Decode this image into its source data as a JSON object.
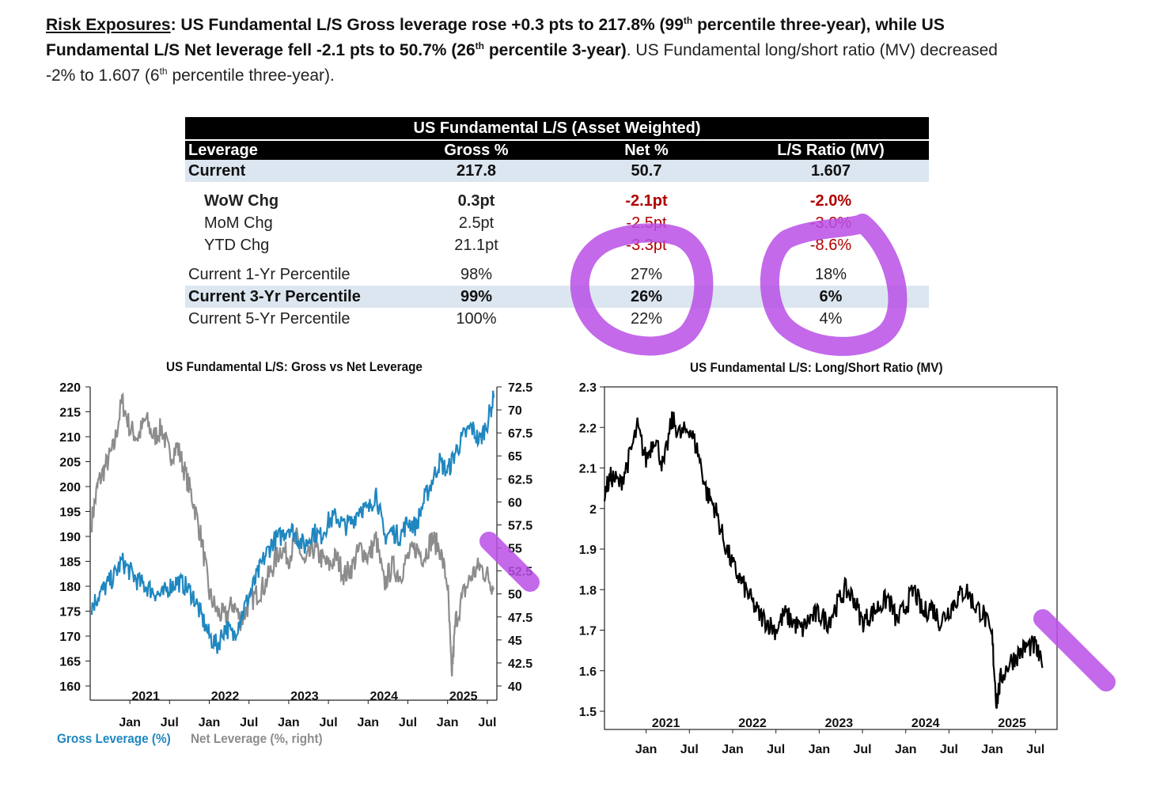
{
  "intro": {
    "label": "Risk Exposures",
    "colon": ": ",
    "bold1": "US Fundamental L/S Gross leverage rose +0.3 pts to 217.8% (99",
    "sup1": "th",
    "bold2": " percentile three-year), while US Fundamental L/S Net leverage fell -2.1 pts to 50.7% (26",
    "sup2": "th",
    "bold3": " percentile 3-year)",
    "plain1": ". US Fundamental long/short ratio (MV) decreased -2% to 1.607 (6",
    "sup3": "th",
    "plain2": " percentile three-year)."
  },
  "table": {
    "title": "US Fundamental L/S (Asset Weighted)",
    "headers": [
      "Leverage",
      "Gross %",
      "Net %",
      "L/S Ratio (MV)"
    ],
    "current": [
      "Current",
      "217.8",
      "50.7",
      "1.607"
    ],
    "wow": [
      "WoW Chg",
      "0.3pt",
      "-2.1pt",
      "-2.0%"
    ],
    "mom": [
      "MoM Chg",
      "2.5pt",
      "-2.5pt",
      "-3.0%"
    ],
    "ytd": [
      "YTD Chg",
      "21.1pt",
      "-3.3pt",
      "-8.6%"
    ],
    "p1": [
      "Current 1-Yr Percentile",
      "98%",
      "27%",
      "18%"
    ],
    "p3": [
      "Current 3-Yr Percentile",
      "99%",
      "26%",
      "6%"
    ],
    "p5": [
      "Current 5-Yr Percentile",
      "100%",
      "22%",
      "4%"
    ],
    "negative_color": "#b00000",
    "highlight_color": "#dce6f0"
  },
  "colors": {
    "gross": "#1f87c0",
    "net": "#8c8c8c",
    "ratio": "#000000",
    "annotation": "#b84fe6"
  },
  "chart_data": [
    {
      "type": "line",
      "title": "US Fundamental L/S: Gross vs Net Leverage",
      "x_years": [
        "2021",
        "2022",
        "2023",
        "2024",
        "2025"
      ],
      "x_months": [
        "Jan",
        "Jul",
        "Jan",
        "Jul",
        "Jan",
        "Jul",
        "Jan",
        "Jul",
        "Jan",
        "Jul"
      ],
      "y_left": {
        "range": [
          160,
          220
        ],
        "ticks": [
          "160",
          "165",
          "170",
          "175",
          "180",
          "185",
          "190",
          "195",
          "200",
          "205",
          "210",
          "215",
          "220"
        ]
      },
      "y_right": {
        "range": [
          40,
          72.5
        ],
        "ticks": [
          "40",
          "42.5",
          "45",
          "47.5",
          "50",
          "52.5",
          "55",
          "57.5",
          "60",
          "62.5",
          "65",
          "67.5",
          "70",
          "72.5"
        ]
      },
      "series": [
        {
          "name": "Gross Leverage (%)",
          "axis": "left",
          "x": [
            2020.72,
            2020.8,
            2020.9,
            2021.0,
            2021.1,
            2021.2,
            2021.3,
            2021.4,
            2021.5,
            2021.6,
            2021.7,
            2021.8,
            2021.9,
            2022.0,
            2022.1,
            2022.2,
            2022.3,
            2022.4,
            2022.5,
            2022.6,
            2022.7,
            2022.8,
            2022.9,
            2023.0,
            2023.1,
            2023.2,
            2023.3,
            2023.4,
            2023.5,
            2023.6,
            2023.7,
            2023.8,
            2023.9,
            2024.0,
            2024.1,
            2024.2,
            2024.3,
            2024.4,
            2024.5,
            2024.6,
            2024.7,
            2024.8,
            2024.9,
            2025.0,
            2025.1,
            2025.2,
            2025.3,
            2025.4,
            2025.5,
            2025.6,
            2025.7,
            2025.78
          ],
          "y": [
            176,
            178,
            180,
            182,
            185,
            183,
            181,
            180,
            179,
            178,
            180,
            181,
            180,
            178,
            174,
            170,
            168,
            172,
            170,
            174,
            178,
            182,
            186,
            189,
            190,
            192,
            190,
            188,
            191,
            190,
            193,
            194,
            192,
            193,
            196,
            195,
            199,
            190,
            191,
            190,
            193,
            192,
            197,
            201,
            205,
            203,
            207,
            210,
            212,
            209,
            213,
            217.8
          ]
        },
        {
          "name": "Net Leverage (%, right)",
          "axis": "right",
          "x": [
            2020.72,
            2020.8,
            2020.9,
            2021.0,
            2021.1,
            2021.2,
            2021.3,
            2021.4,
            2021.5,
            2021.6,
            2021.7,
            2021.8,
            2021.9,
            2022.0,
            2022.1,
            2022.2,
            2022.3,
            2022.4,
            2022.5,
            2022.6,
            2022.7,
            2022.8,
            2022.9,
            2023.0,
            2023.1,
            2023.2,
            2023.3,
            2023.4,
            2023.5,
            2023.6,
            2023.7,
            2023.8,
            2023.9,
            2024.0,
            2024.1,
            2024.2,
            2024.3,
            2024.4,
            2024.5,
            2024.6,
            2024.7,
            2024.8,
            2024.9,
            2025.0,
            2025.1,
            2025.2,
            2025.25,
            2025.3,
            2025.4,
            2025.5,
            2025.6,
            2025.7,
            2025.78
          ],
          "y": [
            58,
            62,
            64,
            66,
            71,
            68,
            67,
            69,
            67,
            68,
            65,
            66,
            63,
            60,
            56,
            50,
            48,
            47.5,
            49,
            47,
            49,
            50,
            51,
            53,
            55,
            54,
            56,
            53,
            55,
            54,
            53,
            54,
            52,
            53,
            55,
            54,
            56,
            51,
            53,
            52,
            54,
            55,
            54,
            56,
            55,
            51,
            41,
            47,
            50,
            52,
            53,
            52,
            50.7
          ]
        }
      ],
      "legend": [
        "Gross Leverage (%)",
        "Net Leverage (%, right)"
      ]
    },
    {
      "type": "line",
      "title": "US Fundamental L/S: Long/Short Ratio (MV)",
      "x_years": [
        "2021",
        "2022",
        "2023",
        "2024",
        "2025"
      ],
      "x_months": [
        "Jan",
        "Jul",
        "Jan",
        "Jul",
        "Jan",
        "Jul",
        "Jan",
        "Jul",
        "Jan",
        "Jul"
      ],
      "y": {
        "range": [
          1.5,
          2.3
        ],
        "ticks": [
          "1.5",
          "1.6",
          "1.7",
          "1.8",
          "1.9",
          "2",
          "2.1",
          "2.2",
          "2.3"
        ]
      },
      "series": [
        {
          "name": "Long/Short Ratio (MV)",
          "x": [
            2020.72,
            2020.8,
            2020.9,
            2021.0,
            2021.1,
            2021.2,
            2021.3,
            2021.4,
            2021.5,
            2021.6,
            2021.7,
            2021.8,
            2021.9,
            2022.0,
            2022.1,
            2022.2,
            2022.3,
            2022.4,
            2022.5,
            2022.6,
            2022.7,
            2022.8,
            2022.9,
            2023.0,
            2023.1,
            2023.2,
            2023.3,
            2023.4,
            2023.5,
            2023.6,
            2023.7,
            2023.8,
            2023.9,
            2024.0,
            2024.1,
            2024.2,
            2024.3,
            2024.4,
            2024.5,
            2024.6,
            2024.7,
            2024.8,
            2024.9,
            2025.0,
            2025.1,
            2025.2,
            2025.25,
            2025.3,
            2025.4,
            2025.5,
            2025.6,
            2025.7,
            2025.78
          ],
          "y": [
            2.04,
            2.08,
            2.06,
            2.12,
            2.2,
            2.12,
            2.18,
            2.1,
            2.22,
            2.18,
            2.2,
            2.14,
            2.04,
            2.0,
            1.92,
            1.86,
            1.82,
            1.78,
            1.74,
            1.72,
            1.7,
            1.74,
            1.72,
            1.7,
            1.73,
            1.74,
            1.72,
            1.76,
            1.8,
            1.78,
            1.72,
            1.74,
            1.76,
            1.78,
            1.72,
            1.76,
            1.8,
            1.74,
            1.76,
            1.72,
            1.75,
            1.78,
            1.8,
            1.76,
            1.74,
            1.68,
            1.52,
            1.58,
            1.62,
            1.64,
            1.66,
            1.66,
            1.607
          ]
        }
      ]
    }
  ]
}
